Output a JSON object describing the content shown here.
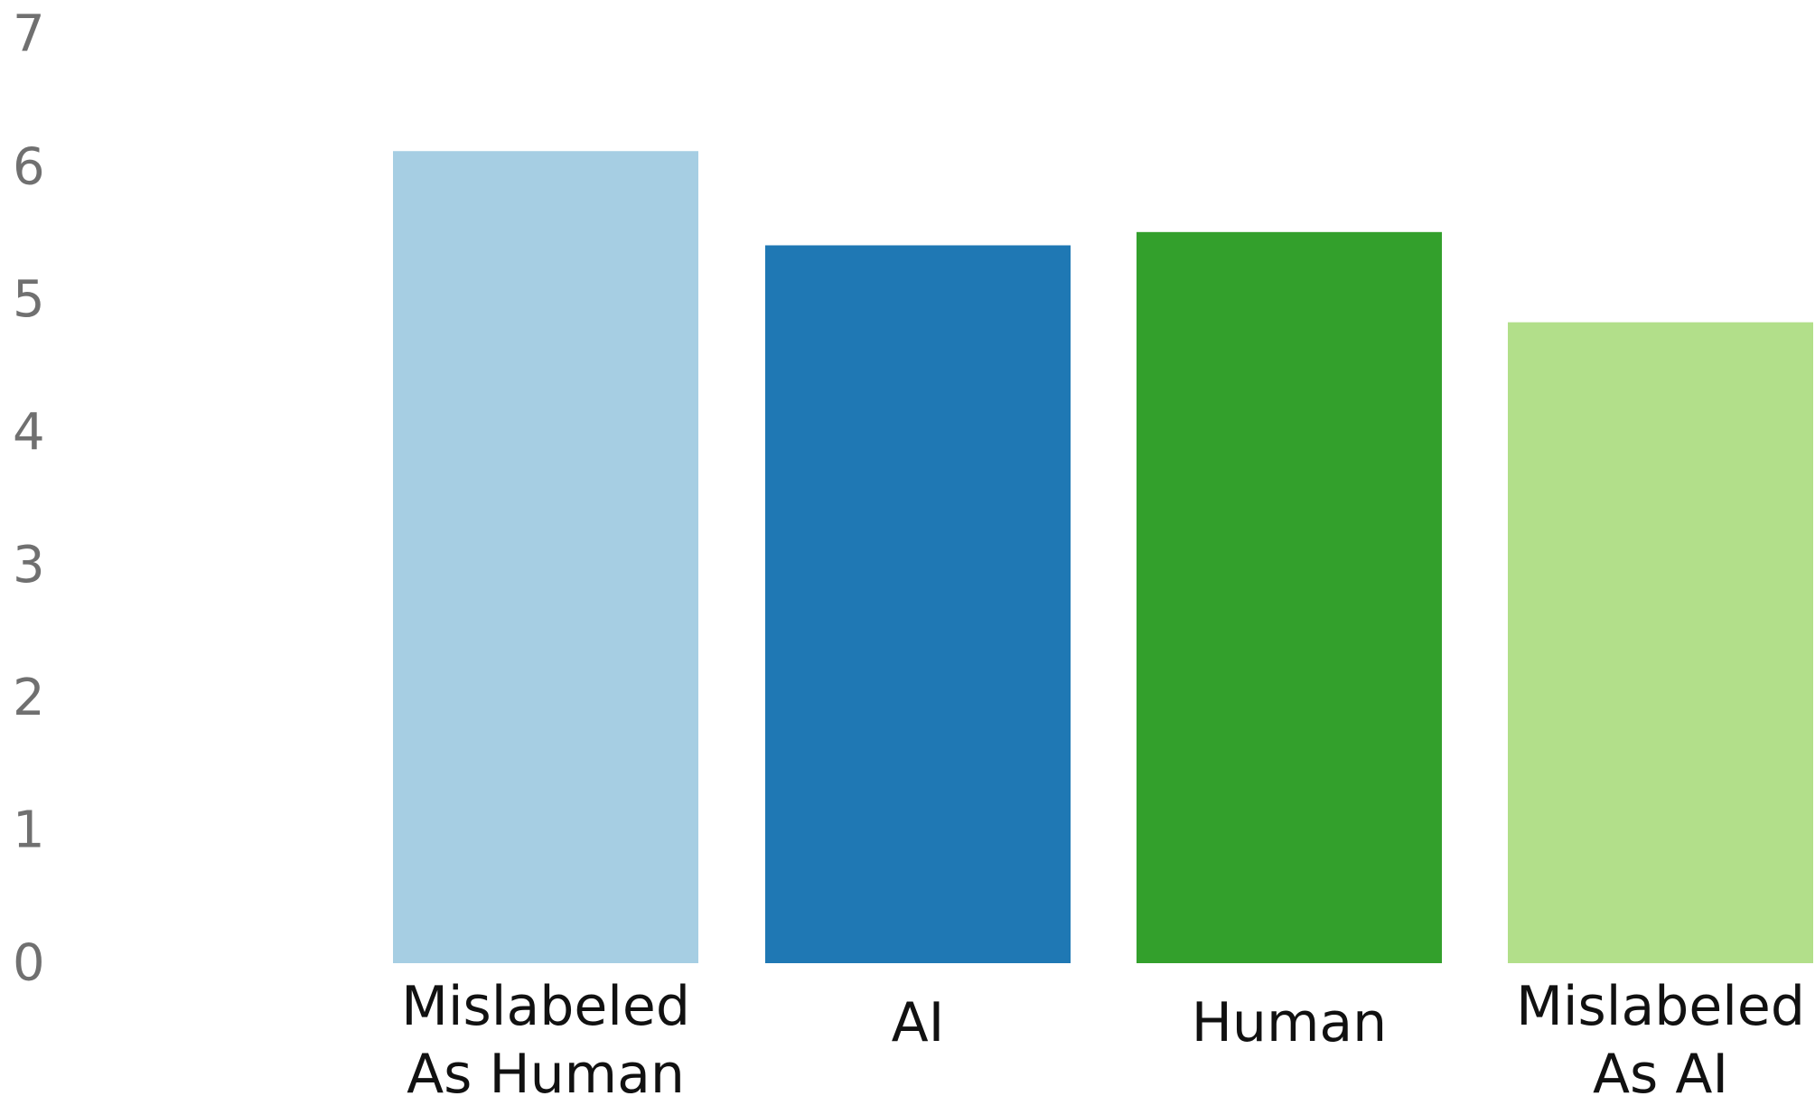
{
  "chart_data": {
    "type": "bar",
    "categories": [
      [
        "Mislabeled",
        "As Human"
      ],
      [
        "AI"
      ],
      [
        "Human"
      ],
      [
        "Mislabeled",
        "As AI"
      ]
    ],
    "values": [
      6.12,
      5.41,
      5.51,
      4.83
    ],
    "colors": [
      "#a6cee3",
      "#1f78b4",
      "#33a02c",
      "#b2df8a"
    ],
    "ylim": [
      0,
      7
    ],
    "yticks": [
      "0",
      "1",
      "2",
      "3",
      "4",
      "5",
      "6",
      "7"
    ],
    "title": "",
    "xlabel": "",
    "ylabel": "",
    "grid": false,
    "legend": false
  }
}
